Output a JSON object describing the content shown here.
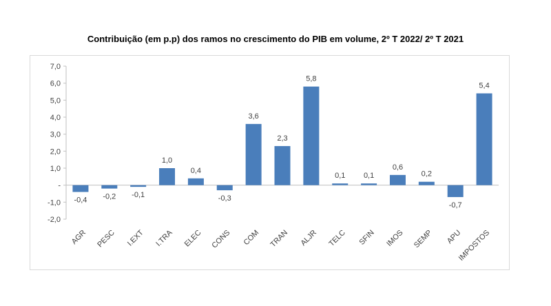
{
  "chart_data": {
    "type": "bar",
    "title": "Contribuição (em p.p) dos ramos no crescimento do PIB em volume, 2º T 2022/ 2º T 2021",
    "categories": [
      "AGR",
      "PESC",
      "I.EXT",
      "I.TRA",
      "ELEC",
      "CONS",
      "COM",
      "TRAN",
      "ALJR",
      "TELC",
      "SFIN",
      "IMOS",
      "SEMP",
      "APU",
      "IMPOSTOS"
    ],
    "values": [
      -0.4,
      -0.2,
      -0.1,
      1.0,
      0.4,
      -0.3,
      3.6,
      2.3,
      5.8,
      0.1,
      0.1,
      0.6,
      0.2,
      -0.7,
      5.4
    ],
    "data_labels": [
      "-0,4",
      "-0,2",
      "-0,1",
      "1,0",
      "0,4",
      "-0,3",
      "3,6",
      "2,3",
      "5,8",
      "0,1",
      "0,1",
      "0,6",
      "0,2",
      "-0,7",
      "5,4"
    ],
    "y_ticks": [
      7,
      6,
      5,
      4,
      3,
      2,
      1,
      0,
      -1,
      -2
    ],
    "y_tick_labels": [
      "7,0",
      "6,0",
      "5,0",
      "4,0",
      "3,0",
      "2,0",
      "1,0",
      "-",
      "-1,0",
      "-2,0"
    ],
    "ylim": [
      -2,
      7
    ],
    "xlabel": "",
    "ylabel": "",
    "grid": false,
    "bar_color": "#4a7ebb"
  }
}
